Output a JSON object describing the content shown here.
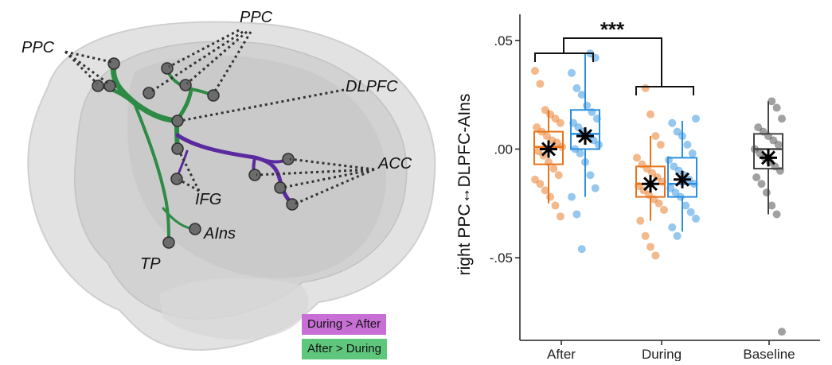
{
  "brain": {
    "labels": {
      "ppc_left": "PPC",
      "ppc_top": "PPC",
      "dlpfc": "DLPFC",
      "acc": "ACC",
      "ifg": "IFG",
      "ains": "AIns",
      "tp": "TP"
    },
    "legend": {
      "purple_label": "During > After",
      "purple_color": "#c86fd6",
      "green_label": "After > During",
      "green_color": "#5ec77c"
    },
    "tract_colors": {
      "green": "#2e8b45",
      "purple": "#5b2a9e"
    }
  },
  "chart_data": {
    "type": "box",
    "ylabel": "right PPC↔DLPFC-AIns",
    "ytick_labels": [
      ".05",
      ".00",
      "-.05"
    ],
    "yticks": [
      0.05,
      0.0,
      -0.05
    ],
    "ylim": [
      -0.088,
      0.062
    ],
    "categories": [
      "After",
      "During",
      "Baseline"
    ],
    "significance": "***",
    "colors": {
      "orange": "#e8731a",
      "blue": "#2b8fe0",
      "gray": "#444444"
    },
    "boxes": [
      {
        "group": "After",
        "color": "orange",
        "whisker_low": -0.025,
        "q1": -0.007,
        "median": 0.001,
        "q3": 0.008,
        "whisker_high": 0.018,
        "mean": 0.0,
        "points": [
          0.036,
          0.03,
          0.018,
          0.016,
          0.014,
          0.012,
          0.01,
          0.008,
          0.006,
          0.004,
          0.003,
          0.001,
          -0.001,
          -0.003,
          -0.006,
          -0.009,
          -0.012,
          -0.014,
          -0.016,
          -0.019,
          -0.022,
          -0.026,
          -0.031
        ]
      },
      {
        "group": "After",
        "color": "blue",
        "whisker_low": -0.022,
        "q1": 0.0,
        "median": 0.007,
        "q3": 0.018,
        "whisker_high": 0.044,
        "mean": 0.006,
        "points": [
          0.044,
          0.042,
          0.035,
          0.028,
          0.025,
          0.02,
          0.017,
          0.014,
          0.012,
          0.01,
          0.008,
          0.006,
          0.004,
          0.002,
          0.0,
          -0.002,
          -0.006,
          -0.012,
          -0.018,
          -0.022,
          -0.03,
          -0.046
        ]
      },
      {
        "group": "During",
        "color": "orange",
        "whisker_low": -0.033,
        "q1": -0.022,
        "median": -0.016,
        "q3": -0.008,
        "whisker_high": 0.006,
        "mean": -0.016,
        "points": [
          0.028,
          0.016,
          0.006,
          0.002,
          -0.004,
          -0.007,
          -0.009,
          -0.011,
          -0.013,
          -0.015,
          -0.017,
          -0.019,
          -0.021,
          -0.023,
          -0.025,
          -0.028,
          -0.033,
          -0.04,
          -0.045,
          -0.049
        ]
      },
      {
        "group": "During",
        "color": "blue",
        "whisker_low": -0.038,
        "q1": -0.022,
        "median": -0.016,
        "q3": -0.004,
        "whisker_high": 0.013,
        "mean": -0.014,
        "points": [
          0.014,
          0.012,
          0.008,
          0.006,
          0.002,
          -0.002,
          -0.005,
          -0.008,
          -0.01,
          -0.012,
          -0.014,
          -0.016,
          -0.018,
          -0.02,
          -0.022,
          -0.026,
          -0.029,
          -0.032,
          -0.036,
          -0.04
        ]
      },
      {
        "group": "Baseline",
        "color": "gray",
        "whisker_low": -0.03,
        "q1": -0.009,
        "median": 0.0,
        "q3": 0.007,
        "whisker_high": 0.022,
        "mean": -0.004,
        "points": [
          0.022,
          0.019,
          0.014,
          0.01,
          0.008,
          0.006,
          0.004,
          0.002,
          0.0,
          -0.002,
          -0.004,
          -0.006,
          -0.008,
          -0.01,
          -0.013,
          -0.016,
          -0.02,
          -0.026,
          -0.03,
          -0.084
        ]
      }
    ]
  }
}
